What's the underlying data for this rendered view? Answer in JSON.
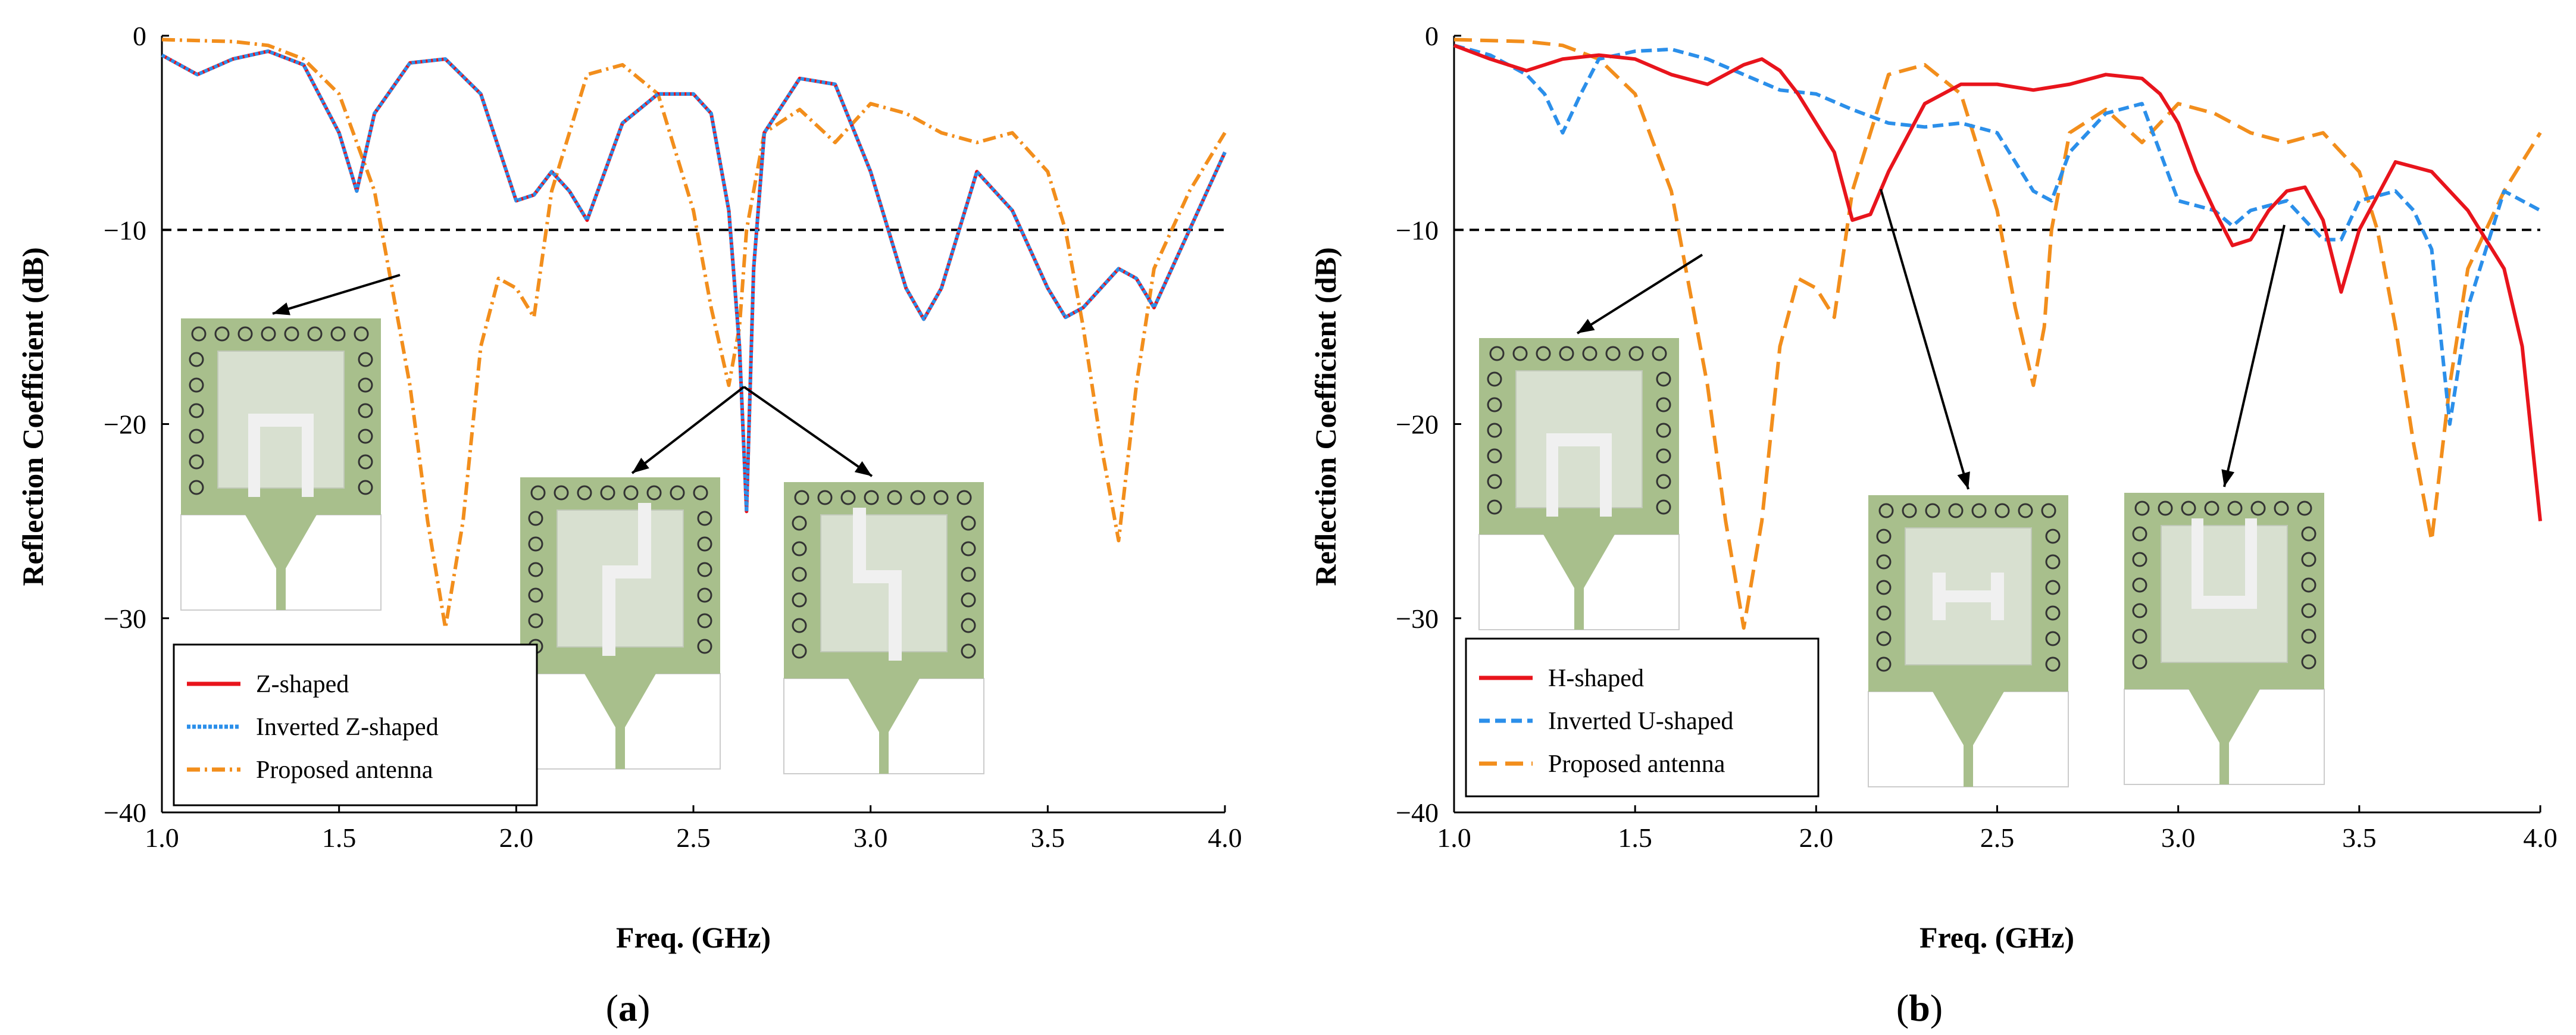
{
  "chart_data": [
    {
      "type": "line",
      "panel": "a",
      "caption_letter": "a",
      "caption_open": "(",
      "caption_close": ")",
      "xlabel": "Freq. (GHz)",
      "ylabel": "Reflection Coefficient (dB)",
      "xlim": [
        1.0,
        4.0
      ],
      "ylim": [
        -40,
        0
      ],
      "xticks": [
        "1.0",
        "1.5",
        "2.0",
        "2.5",
        "3.0",
        "3.5",
        "4.0"
      ],
      "yticks": [
        "0",
        "−10",
        "−20",
        "−30",
        "−40"
      ],
      "threshold": -10,
      "series": [
        {
          "name": "Z-shaped",
          "color": "#e8141c",
          "dash": "solid",
          "x": [
            1.0,
            1.1,
            1.2,
            1.3,
            1.4,
            1.5,
            1.55,
            1.6,
            1.7,
            1.8,
            1.9,
            2.0,
            2.05,
            2.1,
            2.15,
            2.2,
            2.25,
            2.3,
            2.4,
            2.5,
            2.55,
            2.6,
            2.63,
            2.65,
            2.67,
            2.7,
            2.8,
            2.9,
            3.0,
            3.1,
            3.15,
            3.2,
            3.3,
            3.4,
            3.5,
            3.55,
            3.6,
            3.7,
            3.75,
            3.8,
            3.9,
            4.0
          ],
          "y": [
            -1,
            -2,
            -1.2,
            -0.8,
            -1.5,
            -5,
            -8,
            -4,
            -1.4,
            -1.2,
            -3,
            -8.5,
            -8.2,
            -7,
            -8,
            -9.5,
            -7,
            -4.5,
            -3,
            -3,
            -4,
            -9,
            -16,
            -24.5,
            -12,
            -5,
            -2.2,
            -2.5,
            -7,
            -13,
            -14.6,
            -13,
            -7,
            -9,
            -13,
            -14.5,
            -14,
            -12,
            -12.5,
            -14,
            -10,
            -6
          ]
        },
        {
          "name": "Inverted Z-shaped",
          "color": "#2b8fea",
          "dash": "6,3",
          "x": [
            1.0,
            1.1,
            1.2,
            1.3,
            1.4,
            1.5,
            1.55,
            1.6,
            1.7,
            1.8,
            1.9,
            2.0,
            2.05,
            2.1,
            2.15,
            2.2,
            2.25,
            2.3,
            2.4,
            2.5,
            2.55,
            2.6,
            2.63,
            2.65,
            2.67,
            2.7,
            2.8,
            2.9,
            3.0,
            3.1,
            3.15,
            3.2,
            3.3,
            3.4,
            3.5,
            3.55,
            3.6,
            3.7,
            3.75,
            3.8,
            3.9,
            4.0
          ],
          "y": [
            -1,
            -2,
            -1.2,
            -0.8,
            -1.5,
            -5,
            -8,
            -4,
            -1.4,
            -1.2,
            -3,
            -8.5,
            -8.2,
            -7,
            -8,
            -9.5,
            -7,
            -4.5,
            -3,
            -3,
            -4,
            -9,
            -16,
            -24.5,
            -12,
            -5,
            -2.2,
            -2.5,
            -7,
            -13,
            -14.6,
            -13,
            -7,
            -9,
            -13,
            -14.5,
            -14,
            -12,
            -12.5,
            -14,
            -10,
            -6
          ]
        },
        {
          "name": "Proposed antenna",
          "color": "#f28e1c",
          "dash": "22,8,4,8",
          "x": [
            1.0,
            1.2,
            1.3,
            1.4,
            1.5,
            1.6,
            1.7,
            1.75,
            1.8,
            1.85,
            1.9,
            1.95,
            2.0,
            2.05,
            2.1,
            2.2,
            2.3,
            2.4,
            2.5,
            2.55,
            2.6,
            2.63,
            2.65,
            2.7,
            2.8,
            2.9,
            3.0,
            3.1,
            3.2,
            3.3,
            3.4,
            3.5,
            3.55,
            3.6,
            3.65,
            3.7,
            3.75,
            3.8,
            3.9,
            4.0
          ],
          "y": [
            -0.2,
            -0.3,
            -0.5,
            -1.2,
            -3,
            -8,
            -18,
            -25,
            -30.5,
            -25,
            -16,
            -12.5,
            -13,
            -14.5,
            -8,
            -2,
            -1.5,
            -3,
            -9,
            -14,
            -18,
            -15,
            -10,
            -5,
            -3.8,
            -5.5,
            -3.5,
            -4,
            -5,
            -5.5,
            -5,
            -7,
            -10,
            -15,
            -21,
            -26,
            -18,
            -12,
            -8,
            -5
          ]
        }
      ],
      "legend": [
        "Z-shaped",
        "Inverted Z-shaped",
        "Proposed antenna"
      ]
    },
    {
      "type": "line",
      "panel": "b",
      "caption_letter": "b",
      "caption_open": "(",
      "caption_close": ")",
      "xlabel": "Freq. (GHz)",
      "ylabel": "Reflection Coefficient (dB)",
      "xlim": [
        1.0,
        4.0
      ],
      "ylim": [
        -40,
        0
      ],
      "xticks": [
        "1.0",
        "1.5",
        "2.0",
        "2.5",
        "3.0",
        "3.5",
        "4.0"
      ],
      "yticks": [
        "0",
        "−10",
        "−20",
        "−30",
        "−40"
      ],
      "threshold": -10,
      "series": [
        {
          "name": "H-shaped",
          "color": "#e8141c",
          "dash": "solid",
          "x": [
            1.0,
            1.1,
            1.2,
            1.3,
            1.4,
            1.5,
            1.6,
            1.7,
            1.8,
            1.85,
            1.9,
            1.95,
            2.0,
            2.05,
            2.1,
            2.15,
            2.2,
            2.3,
            2.4,
            2.5,
            2.6,
            2.7,
            2.8,
            2.9,
            2.95,
            3.0,
            3.05,
            3.1,
            3.15,
            3.2,
            3.25,
            3.3,
            3.35,
            3.4,
            3.45,
            3.5,
            3.6,
            3.7,
            3.8,
            3.9,
            3.95,
            4.0
          ],
          "y": [
            -0.5,
            -1.2,
            -1.8,
            -1.2,
            -1,
            -1.2,
            -2,
            -2.5,
            -1.5,
            -1.2,
            -1.8,
            -3,
            -4.5,
            -6,
            -9.5,
            -9.2,
            -7,
            -3.5,
            -2.5,
            -2.5,
            -2.8,
            -2.5,
            -2,
            -2.2,
            -3,
            -4.5,
            -7,
            -9,
            -10.8,
            -10.5,
            -9,
            -8,
            -7.8,
            -9.5,
            -13.2,
            -10,
            -6.5,
            -7,
            -9,
            -12,
            -16,
            -25
          ]
        },
        {
          "name": "Inverted U-shaped",
          "color": "#2b8fea",
          "dash": "18,9",
          "x": [
            1.0,
            1.1,
            1.2,
            1.25,
            1.3,
            1.35,
            1.4,
            1.5,
            1.6,
            1.7,
            1.8,
            1.9,
            2.0,
            2.1,
            2.2,
            2.3,
            2.4,
            2.5,
            2.55,
            2.6,
            2.65,
            2.7,
            2.8,
            2.9,
            2.95,
            3.0,
            3.1,
            3.15,
            3.2,
            3.3,
            3.4,
            3.45,
            3.5,
            3.6,
            3.65,
            3.7,
            3.75,
            3.8,
            3.9,
            4.0
          ],
          "y": [
            -0.5,
            -1,
            -2,
            -3,
            -5,
            -3,
            -1.2,
            -0.8,
            -0.7,
            -1.2,
            -2,
            -2.8,
            -3,
            -3.8,
            -4.5,
            -4.7,
            -4.5,
            -5,
            -6.5,
            -8,
            -8.5,
            -6,
            -4,
            -3.5,
            -6,
            -8.5,
            -9,
            -9.8,
            -9,
            -8.5,
            -10.5,
            -10.5,
            -8.5,
            -8,
            -9,
            -11,
            -20,
            -14,
            -8,
            -9
          ]
        },
        {
          "name": "Proposed antenna",
          "color": "#f28e1c",
          "dash": "30,14",
          "x": [
            1.0,
            1.2,
            1.3,
            1.4,
            1.5,
            1.6,
            1.7,
            1.75,
            1.8,
            1.85,
            1.9,
            1.95,
            2.0,
            2.05,
            2.1,
            2.2,
            2.3,
            2.4,
            2.5,
            2.55,
            2.6,
            2.63,
            2.65,
            2.7,
            2.8,
            2.9,
            3.0,
            3.1,
            3.2,
            3.3,
            3.4,
            3.5,
            3.55,
            3.6,
            3.65,
            3.7,
            3.75,
            3.8,
            3.9,
            4.0
          ],
          "y": [
            -0.2,
            -0.3,
            -0.5,
            -1.2,
            -3,
            -8,
            -18,
            -25,
            -30.5,
            -25,
            -16,
            -12.5,
            -13,
            -14.5,
            -8,
            -2,
            -1.5,
            -3,
            -9,
            -14,
            -18,
            -15,
            -10,
            -5,
            -3.8,
            -5.5,
            -3.5,
            -4,
            -5,
            -5.5,
            -5,
            -7,
            -10,
            -15,
            -21,
            -26,
            -18,
            -12,
            -8,
            -5
          ]
        }
      ],
      "legend": [
        "H-shaped",
        "Inverted U-shaped",
        "Proposed antenna"
      ]
    }
  ],
  "insets": {
    "a": [
      {
        "name": "proposed-antenna-inset",
        "shape": "u"
      },
      {
        "name": "z-shaped-inset",
        "shape": "z"
      },
      {
        "name": "inverted-z-shaped-inset",
        "shape": "iz"
      }
    ],
    "b": [
      {
        "name": "proposed-antenna-inset",
        "shape": "u"
      },
      {
        "name": "h-shaped-inset",
        "shape": "h"
      },
      {
        "name": "inverted-u-shaped-inset",
        "shape": "iu"
      }
    ]
  },
  "colors": {
    "substrate": "#a8bf8c",
    "ground": "#ffffff",
    "patch": "#d8e0d0",
    "slot": "#f0f0f0",
    "feed": "#a8bf8c"
  }
}
